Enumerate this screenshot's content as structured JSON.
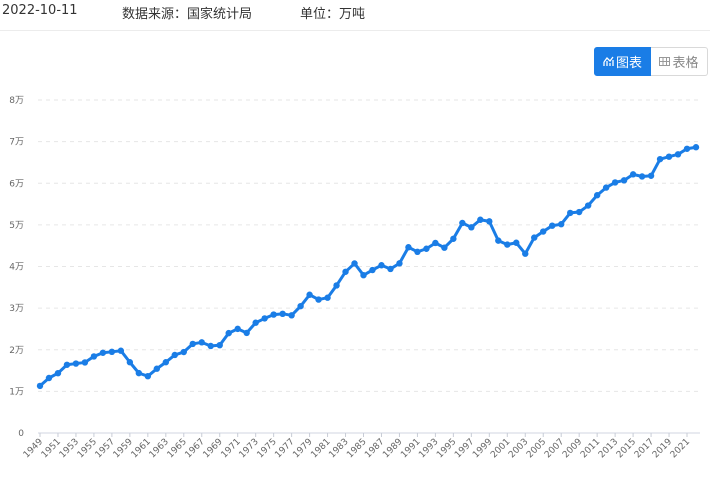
{
  "header": {
    "date": "2022-10-11",
    "source": "数据来源：国家统计局",
    "unit": "单位：万吨"
  },
  "toggle": {
    "chart_label": "图表",
    "table_label": "表格",
    "chart_icon": "chart-icon",
    "table_icon": "table-icon",
    "active_color": "#1a7de6"
  },
  "chart_data": {
    "type": "line",
    "title": "",
    "xlabel": "",
    "ylabel": "",
    "ylim": [
      0,
      80000
    ],
    "y_ticks": [
      0,
      10000,
      20000,
      30000,
      40000,
      50000,
      60000,
      70000,
      80000
    ],
    "y_tick_labels": [
      "0",
      "1万",
      "2万",
      "3万",
      "4万",
      "5万",
      "6万",
      "7万",
      "8万"
    ],
    "x_tick_labels": [
      "1949",
      "1951",
      "1953",
      "1955",
      "1957",
      "1959",
      "1961",
      "1963",
      "1965",
      "1967",
      "1969",
      "1971",
      "1973",
      "1975",
      "1977",
      "1979",
      "1981",
      "1983",
      "1985",
      "1987",
      "1989",
      "1991",
      "1993",
      "1995",
      "1997",
      "1999",
      "2001",
      "2003",
      "2005",
      "2007",
      "2009",
      "2011",
      "2013",
      "2015",
      "2017",
      "2019",
      "2021"
    ],
    "grid": true,
    "color": "#1a7de6",
    "x": [
      1949,
      1950,
      1951,
      1952,
      1953,
      1954,
      1955,
      1956,
      1957,
      1958,
      1959,
      1960,
      1961,
      1962,
      1963,
      1964,
      1965,
      1966,
      1967,
      1968,
      1969,
      1970,
      1971,
      1972,
      1973,
      1974,
      1975,
      1976,
      1977,
      1978,
      1979,
      1980,
      1981,
      1982,
      1983,
      1984,
      1985,
      1986,
      1987,
      1988,
      1989,
      1990,
      1991,
      1992,
      1993,
      1994,
      1995,
      1996,
      1997,
      1998,
      1999,
      2000,
      2001,
      2002,
      2003,
      2004,
      2005,
      2006,
      2007,
      2008,
      2009,
      2010,
      2011,
      2012,
      2013,
      2014,
      2015,
      2016,
      2017,
      2018,
      2019,
      2020,
      2021,
      2022
    ],
    "values": [
      11318,
      13213,
      14369,
      16392,
      16683,
      16952,
      18394,
      19275,
      19505,
      19765,
      17000,
      14385,
      13650,
      15441,
      17000,
      18750,
      19453,
      21400,
      21782,
      20906,
      21097,
      23996,
      25014,
      24048,
      26494,
      27527,
      28452,
      28631,
      28273,
      30477,
      33212,
      32056,
      32502,
      35450,
      38728,
      40731,
      37911,
      39151,
      40298,
      39408,
      40755,
      44624,
      43529,
      44266,
      45649,
      44510,
      46662,
      50454,
      49417,
      51230,
      50839,
      46218,
      45264,
      45706,
      43070,
      46947,
      48402,
      49804,
      50160,
      52871,
      53082,
      54648,
      57121,
      58958,
      60194,
      60703,
      62144,
      61625,
      61791,
      65789,
      66384,
      66949,
      68285,
      68653
    ]
  }
}
